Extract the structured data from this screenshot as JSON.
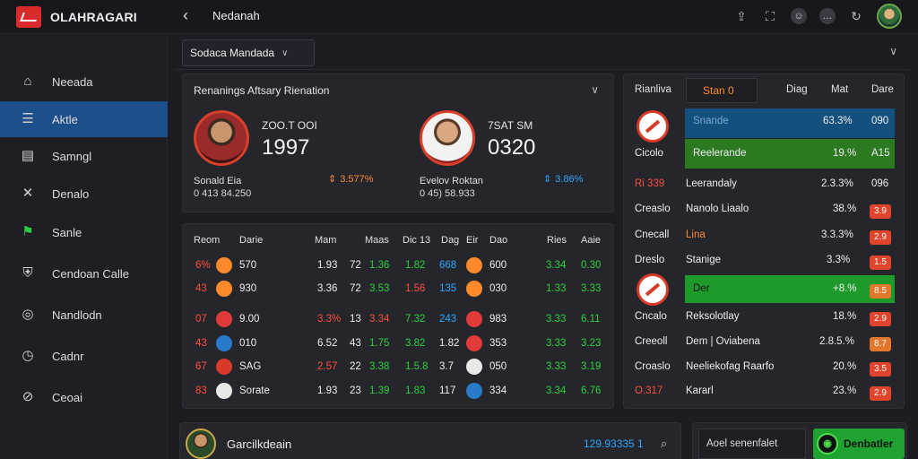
{
  "app": {
    "brand": "OLAHRAGARI",
    "page_title": "Nedanah"
  },
  "sidebar": {
    "items": [
      {
        "label": "Neeada",
        "icon": "home-icon"
      },
      {
        "label": "Aktle",
        "icon": "list-icon",
        "active": true
      },
      {
        "label": "Samngl",
        "icon": "table-icon"
      },
      {
        "label": "Denalo",
        "icon": "tools-icon"
      },
      {
        "label": "Sanle",
        "icon": "flag-icon"
      },
      {
        "label": "Cendoan Calle",
        "icon": "shield-icon"
      },
      {
        "label": "Nandlodn",
        "icon": "music-icon"
      },
      {
        "label": "Cadnr",
        "icon": "clock-icon"
      },
      {
        "label": "Ceoai",
        "icon": "ban-icon"
      }
    ]
  },
  "header": {
    "season": "Sodaca Mandada"
  },
  "rankings": {
    "title": "Renanings Aftsary Rienation",
    "players": [
      {
        "label": "ZOO.T OOI",
        "score": "1997",
        "name": "Sonald Eia",
        "sub": "0 413 84.250",
        "trend": "3.577%",
        "trend_color": "#ff8a2a"
      },
      {
        "label": "7SAT SM",
        "score": "0320",
        "name": "Evelov Roktan",
        "sub": "0 45) 58.933",
        "trend": "3.86%",
        "trend_color": "#2aa6ff"
      }
    ]
  },
  "matches": {
    "headers": [
      "Reom",
      "Darie",
      "Mam",
      "Maas",
      "Dic 13",
      "Dag",
      "Eir",
      "Dao",
      "Ries",
      "Aaie"
    ],
    "rows": [
      {
        "c1": "6%",
        "c2": "570",
        "c3": "1.93",
        "c4": "72",
        "c5": "1.36",
        "c6": "1.82",
        "c7": "668",
        "c8": "600",
        "c9": "3.34",
        "c10": "0.30",
        "ball": "#ff8a2a"
      },
      {
        "c1": "43",
        "c2": "930",
        "c3": "3.36",
        "c4": "72",
        "c5": "3.53",
        "c6": "1.56",
        "c7": "135",
        "c8": "030",
        "c9": "1.33",
        "c10": "3.33",
        "ball": "#ff8a2a"
      },
      {
        "c1": "07",
        "c2": "9.00",
        "c3": "3.3%",
        "c4": "13",
        "c5": "3.34",
        "c6": "7.32",
        "c7": "243",
        "c8": "983",
        "c9": "3.33",
        "c10": "6.11",
        "ball": "#e03a3a"
      },
      {
        "c1": "43",
        "c2": "010",
        "c3": "6.52",
        "c4": "43",
        "c5": "1.75",
        "c6": "3.82",
        "c7": "1.82",
        "c8": "353",
        "c9": "3.33",
        "c10": "3.23",
        "ball": "#2a7acc"
      },
      {
        "c1": "67",
        "c2": "SAG",
        "c3": "2.57",
        "c4": "22",
        "c5": "3.38",
        "c6": "1.5.8",
        "c7": "3.7",
        "c8": "050",
        "c9": "3.33",
        "c10": "3.19",
        "ball": "#d83a2a"
      },
      {
        "c1": "83",
        "c2": "Sorate",
        "c3": "1.93",
        "c4": "23",
        "c5": "1.39",
        "c6": "1.83",
        "c7": "117",
        "c8": "334",
        "c9": "3.34",
        "c10": "6.76",
        "ball": "#e8e8e8"
      }
    ]
  },
  "standings": {
    "headers": {
      "team": "Rianliva",
      "tab": "Stan 0",
      "c1": "Diag",
      "c2": "Mat",
      "c3": "Dare"
    },
    "rows": [
      {
        "prefix": "",
        "name": "Snande",
        "pct": "63.3%",
        "val": "090",
        "style": "blue"
      },
      {
        "prefix": "Cicolo",
        "name": "Reelerande",
        "pct": "19.%",
        "val": "A15",
        "style": "green"
      },
      {
        "prefix": "Ri 339",
        "name": "Leerandaly",
        "pct": "2.3.3%",
        "val": "096",
        "style": "plain"
      },
      {
        "prefix": "Creaslo",
        "name": "Nanolo Liaalo",
        "pct": "38.%",
        "val": "3.9",
        "style": "badge-red"
      },
      {
        "prefix": "Cnecall",
        "name": "Lina",
        "pct": "3.3.3%",
        "val": "2.9",
        "style": "badge-red"
      },
      {
        "prefix": "Dreslo",
        "name": "Stanige",
        "pct": "3.3%",
        "val": "1.5",
        "style": "badge-red"
      },
      {
        "prefix": "",
        "name": "Der",
        "pct": "+8.%",
        "val": "8.5",
        "style": "bright"
      },
      {
        "prefix": "Cncalo",
        "name": "Reksolotlay",
        "pct": "18.%",
        "val": "2.9",
        "style": "badge-red"
      },
      {
        "prefix": "Creeoll",
        "name": "Dem | Oviabena",
        "pct": "2.8.5.%",
        "val": "8.7",
        "style": "badge-orange"
      },
      {
        "prefix": "Croaslo",
        "name": "Neeliekofag Raarfo",
        "pct": "20.%",
        "val": "3.5",
        "style": "badge-red"
      },
      {
        "prefix": "O.317",
        "name": "Kararl",
        "pct": "23.%",
        "val": "2.9",
        "style": "badge-red"
      }
    ]
  },
  "footer": {
    "player_name": "Garcilkdeain",
    "number": "129.93335 1",
    "input_label": "Aoel senenfalet",
    "button_label": "Denbatler"
  }
}
